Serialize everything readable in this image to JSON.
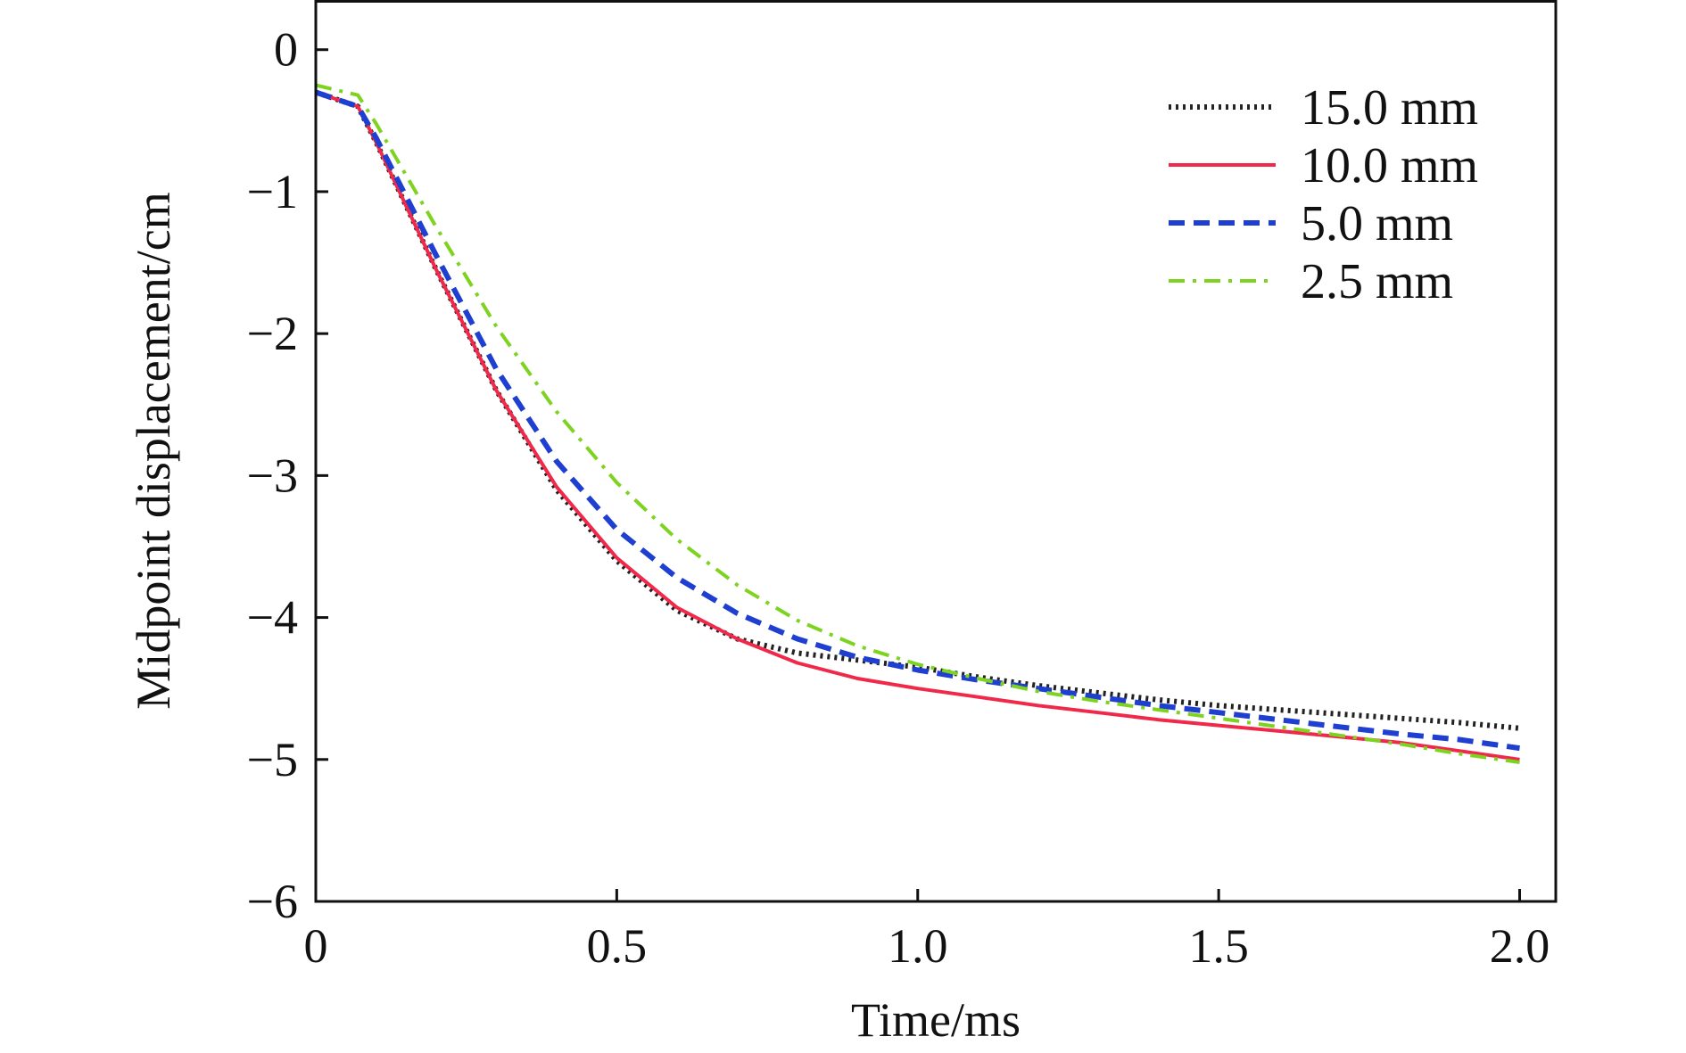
{
  "chart_data": {
    "type": "line",
    "title": "",
    "xlabel": "Time/ms",
    "ylabel": "Midpoint displacement/cm",
    "xlim": [
      0,
      2.06
    ],
    "ylim": [
      -6,
      0.35
    ],
    "xticks": [
      0,
      0.5,
      1.0,
      1.5,
      2.0
    ],
    "xtick_labels": [
      "0",
      "0.5",
      "1.0",
      "1.5",
      "2.0"
    ],
    "yticks": [
      0,
      -1,
      -2,
      -3,
      -4,
      -5,
      -6
    ],
    "ytick_labels": [
      "0",
      "−1",
      "−2",
      "−3",
      "−4",
      "−5",
      "−6"
    ],
    "grid": false,
    "legend_position": "top-right",
    "series": [
      {
        "name": "15.0 mm",
        "color": "#222222",
        "style": "dotted",
        "x": [
          0,
          0.07,
          0.1,
          0.2,
          0.3,
          0.4,
          0.5,
          0.6,
          0.7,
          0.8,
          0.9,
          1.0,
          1.1,
          1.2,
          1.3,
          1.4,
          1.5,
          1.6,
          1.7,
          1.8,
          1.9,
          2.0
        ],
        "y": [
          -0.3,
          -0.4,
          -0.65,
          -1.55,
          -2.4,
          -3.1,
          -3.6,
          -3.95,
          -4.15,
          -4.25,
          -4.3,
          -4.35,
          -4.42,
          -4.48,
          -4.53,
          -4.58,
          -4.62,
          -4.65,
          -4.68,
          -4.71,
          -4.74,
          -4.78
        ]
      },
      {
        "name": "10.0 mm",
        "color": "#f0284a",
        "style": "solid",
        "x": [
          0,
          0.07,
          0.1,
          0.2,
          0.3,
          0.4,
          0.5,
          0.6,
          0.7,
          0.8,
          0.9,
          1.0,
          1.1,
          1.2,
          1.3,
          1.4,
          1.5,
          1.6,
          1.7,
          1.8,
          1.9,
          2.0
        ],
        "y": [
          -0.3,
          -0.4,
          -0.65,
          -1.55,
          -2.4,
          -3.08,
          -3.58,
          -3.93,
          -4.15,
          -4.32,
          -4.43,
          -4.5,
          -4.56,
          -4.62,
          -4.67,
          -4.72,
          -4.76,
          -4.8,
          -4.84,
          -4.88,
          -4.94,
          -5.0
        ]
      },
      {
        "name": "5.0 mm",
        "color": "#1f3fd0",
        "style": "dashed",
        "x": [
          0,
          0.07,
          0.1,
          0.2,
          0.3,
          0.4,
          0.5,
          0.6,
          0.7,
          0.8,
          0.9,
          1.0,
          1.1,
          1.2,
          1.3,
          1.4,
          1.5,
          1.6,
          1.7,
          1.8,
          1.9,
          2.0
        ],
        "y": [
          -0.3,
          -0.4,
          -0.62,
          -1.45,
          -2.25,
          -2.9,
          -3.38,
          -3.72,
          -3.97,
          -4.15,
          -4.28,
          -4.37,
          -4.44,
          -4.5,
          -4.56,
          -4.62,
          -4.67,
          -4.72,
          -4.77,
          -4.82,
          -4.86,
          -4.92
        ]
      },
      {
        "name": "2.5 mm",
        "color": "#7ed321",
        "style": "dashdot",
        "x": [
          0,
          0.07,
          0.1,
          0.2,
          0.3,
          0.4,
          0.5,
          0.6,
          0.7,
          0.8,
          0.9,
          1.0,
          1.1,
          1.2,
          1.3,
          1.4,
          1.5,
          1.6,
          1.7,
          1.8,
          1.9,
          2.0
        ],
        "y": [
          -0.25,
          -0.32,
          -0.52,
          -1.25,
          -1.95,
          -2.55,
          -3.05,
          -3.45,
          -3.77,
          -4.02,
          -4.2,
          -4.33,
          -4.43,
          -4.52,
          -4.59,
          -4.65,
          -4.71,
          -4.77,
          -4.83,
          -4.89,
          -4.96,
          -5.02
        ]
      }
    ]
  }
}
